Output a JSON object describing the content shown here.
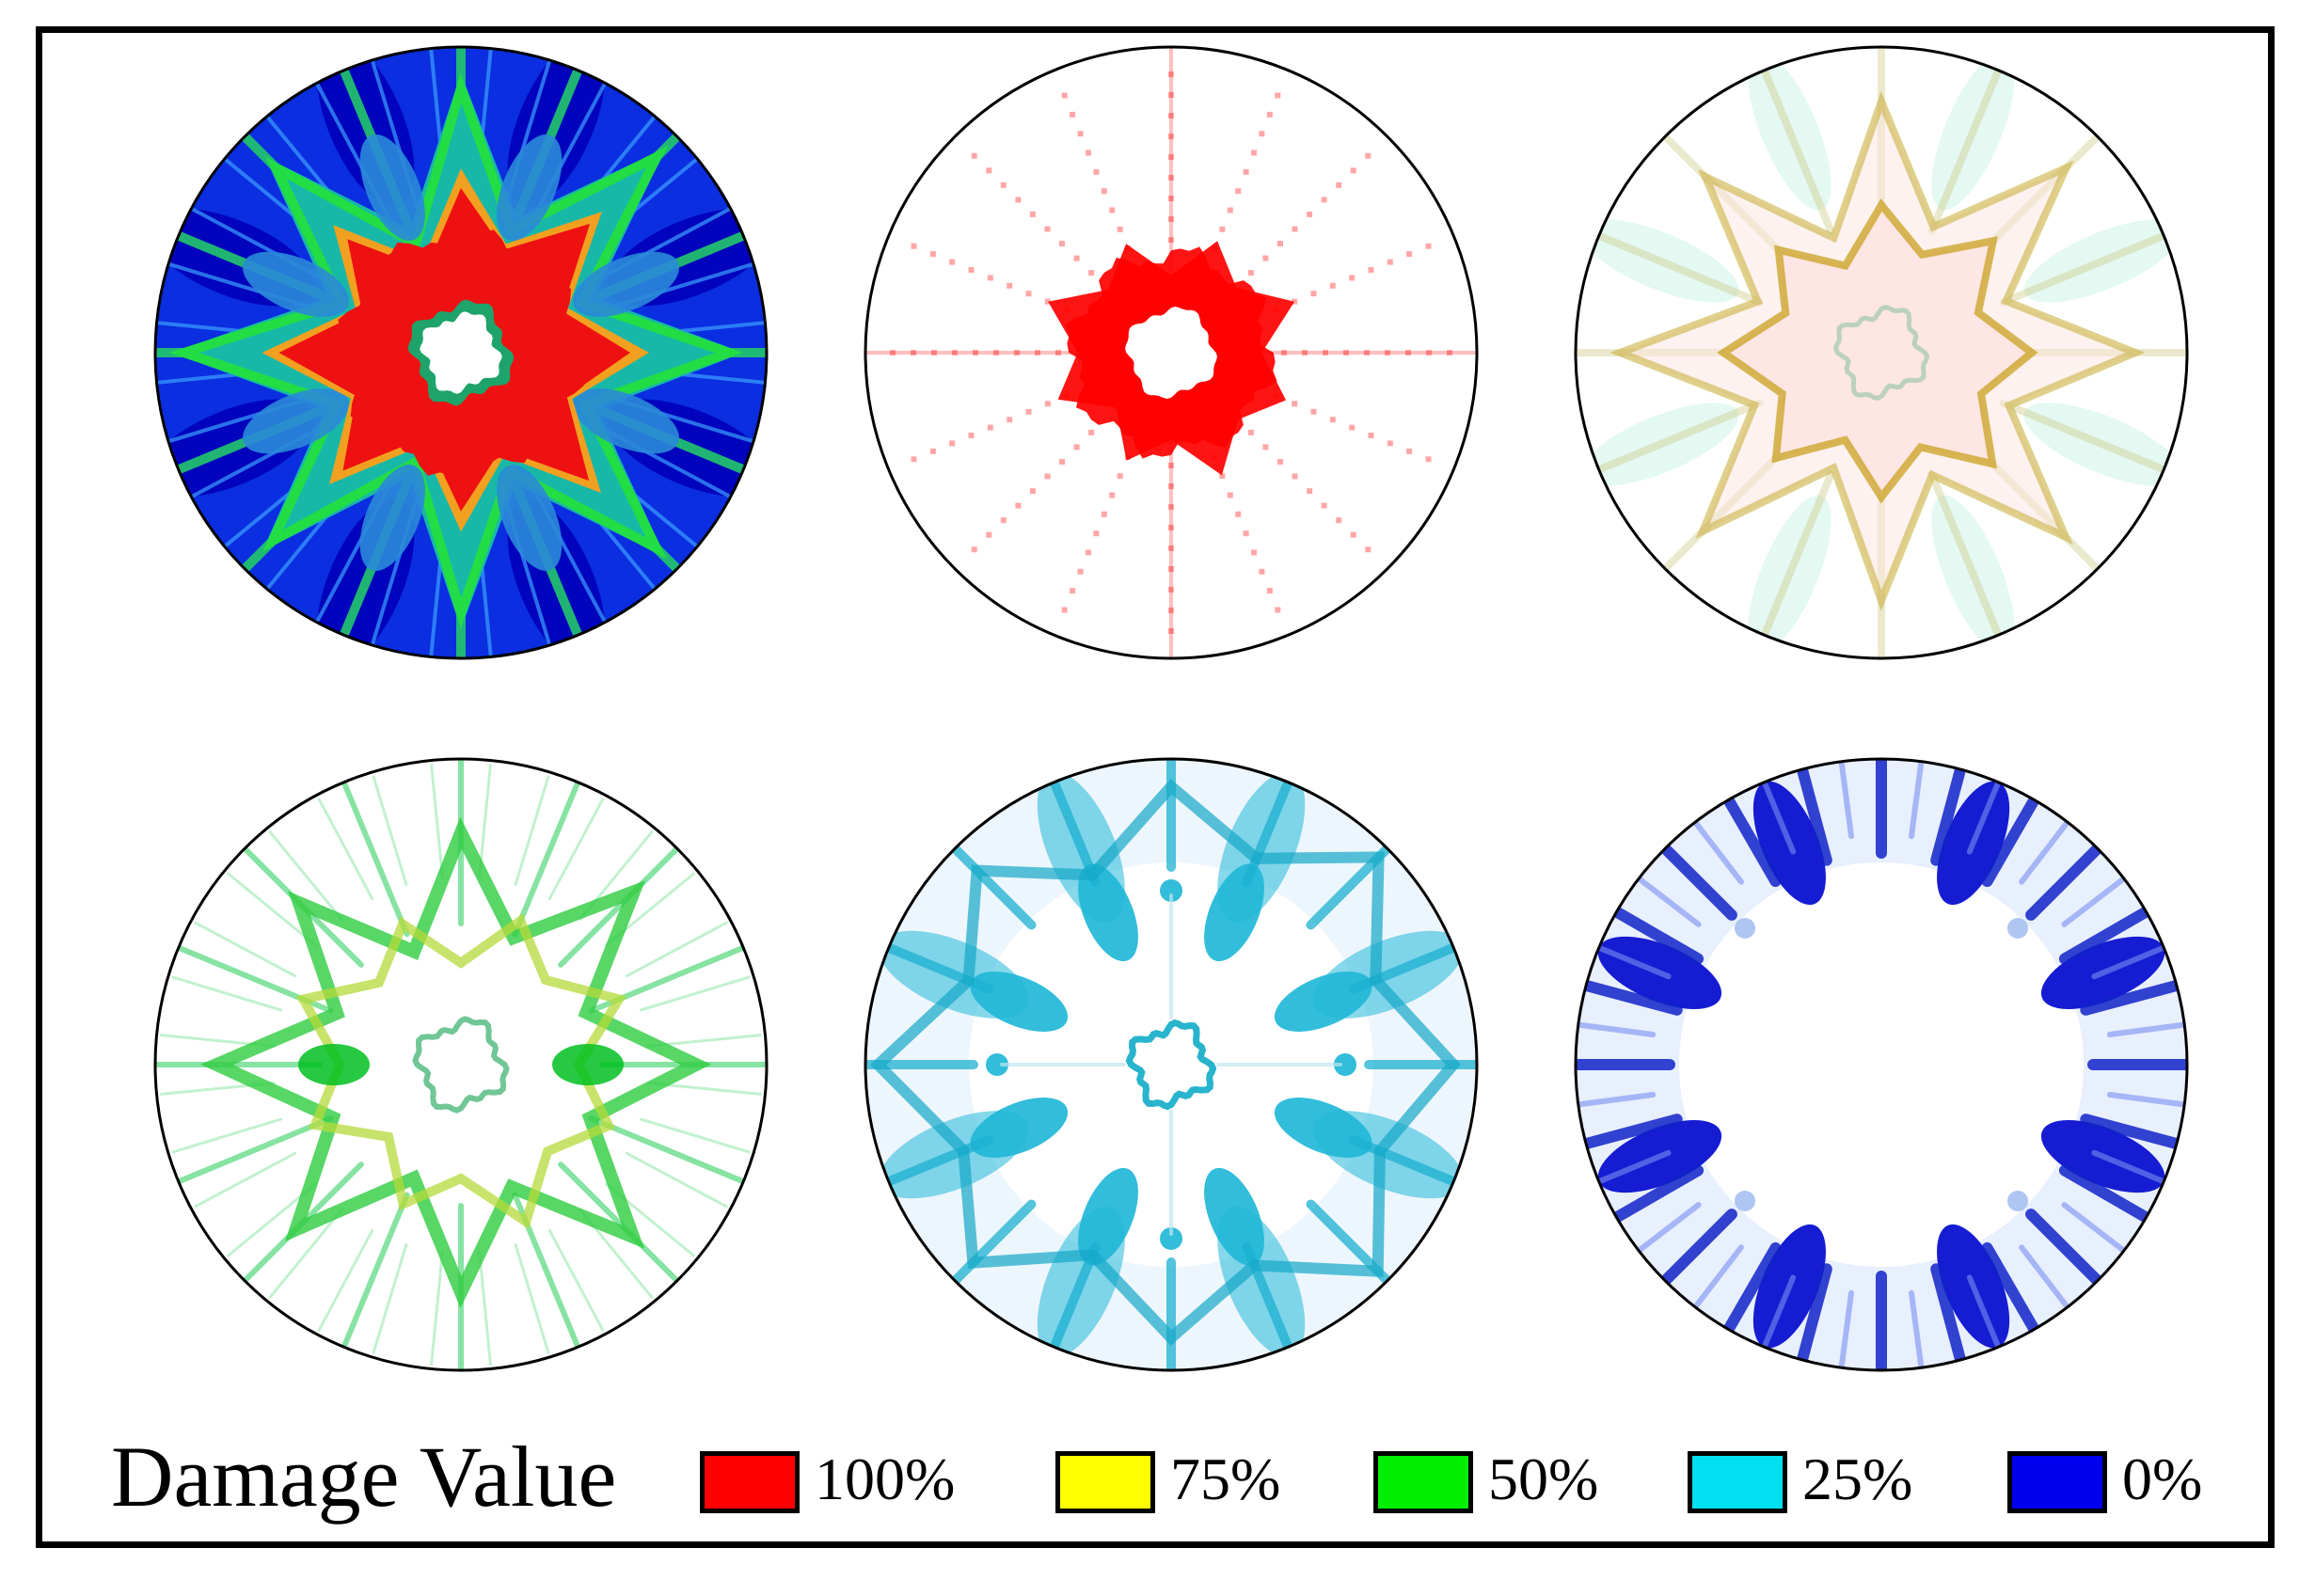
{
  "figure": {
    "panels": [
      {
        "id": "all-levels",
        "mode": "all"
      },
      {
        "id": "level-100",
        "mode": "100"
      },
      {
        "id": "level-75",
        "mode": "75"
      },
      {
        "id": "level-50",
        "mode": "50"
      },
      {
        "id": "level-25",
        "mode": "25"
      },
      {
        "id": "level-0",
        "mode": "0"
      }
    ]
  },
  "legend": {
    "title": "Damage Value",
    "items": [
      {
        "label": "100%",
        "color": "#ff0000"
      },
      {
        "label": "75%",
        "color": "#ffff00"
      },
      {
        "label": "50%",
        "color": "#00ee00"
      },
      {
        "label": "25%",
        "color": "#00e0f0"
      },
      {
        "label": "0%",
        "color": "#0000ee"
      }
    ]
  },
  "colors": {
    "red": "#ff0000",
    "yellow": "#ffff00",
    "green": "#00ee00",
    "cyan": "#00e0f0",
    "blue": "#0000ee",
    "frame": "#000000"
  }
}
